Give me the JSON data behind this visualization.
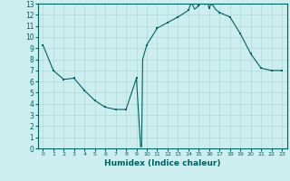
{
  "xlabel": "Humidex (Indice chaleur)",
  "x_values": [
    0,
    1,
    2,
    3,
    4,
    5,
    6,
    7,
    8,
    9,
    9.4,
    9.5,
    9.6,
    10,
    11,
    12,
    13,
    14,
    14.3,
    14.6,
    15,
    15.2,
    15.4,
    15.6,
    15.8,
    16,
    16.2,
    16.4,
    16.6,
    17,
    17.5,
    18,
    19,
    20,
    21,
    22,
    23
  ],
  "y_values": [
    9.3,
    7.0,
    6.2,
    6.3,
    5.2,
    4.3,
    3.7,
    3.5,
    3.5,
    6.3,
    0.15,
    0.15,
    8.0,
    9.3,
    10.8,
    11.3,
    11.8,
    12.4,
    13.1,
    12.5,
    12.8,
    13.1,
    13.3,
    12.9,
    13.2,
    12.6,
    13.0,
    12.8,
    12.5,
    12.2,
    12.0,
    11.8,
    10.3,
    8.5,
    7.2,
    7.0,
    7.0
  ],
  "line_color": "#006060",
  "marker_color": "#006060",
  "bg_color": "#cceeee",
  "grid_color": "#b0d8d8",
  "ylim": [
    0,
    13
  ],
  "xlim": [
    -0.5,
    23.5
  ],
  "yticks": [
    0,
    1,
    2,
    3,
    4,
    5,
    6,
    7,
    8,
    9,
    10,
    11,
    12,
    13
  ],
  "xticks": [
    0,
    1,
    2,
    3,
    4,
    5,
    6,
    7,
    8,
    9,
    10,
    11,
    12,
    13,
    14,
    15,
    16,
    17,
    18,
    19,
    20,
    21,
    22,
    23
  ],
  "marker_x": [
    0,
    1,
    2,
    3,
    4,
    5,
    6,
    7,
    8,
    9,
    10,
    11,
    12,
    13,
    14,
    15,
    16,
    17,
    18,
    19,
    20,
    21,
    22,
    23
  ],
  "marker_y": [
    9.3,
    7.0,
    6.2,
    6.3,
    5.2,
    4.3,
    3.7,
    3.5,
    3.5,
    6.3,
    9.3,
    10.8,
    11.3,
    11.8,
    12.4,
    12.8,
    12.6,
    12.2,
    11.8,
    10.3,
    8.5,
    7.2,
    7.0,
    7.0
  ]
}
